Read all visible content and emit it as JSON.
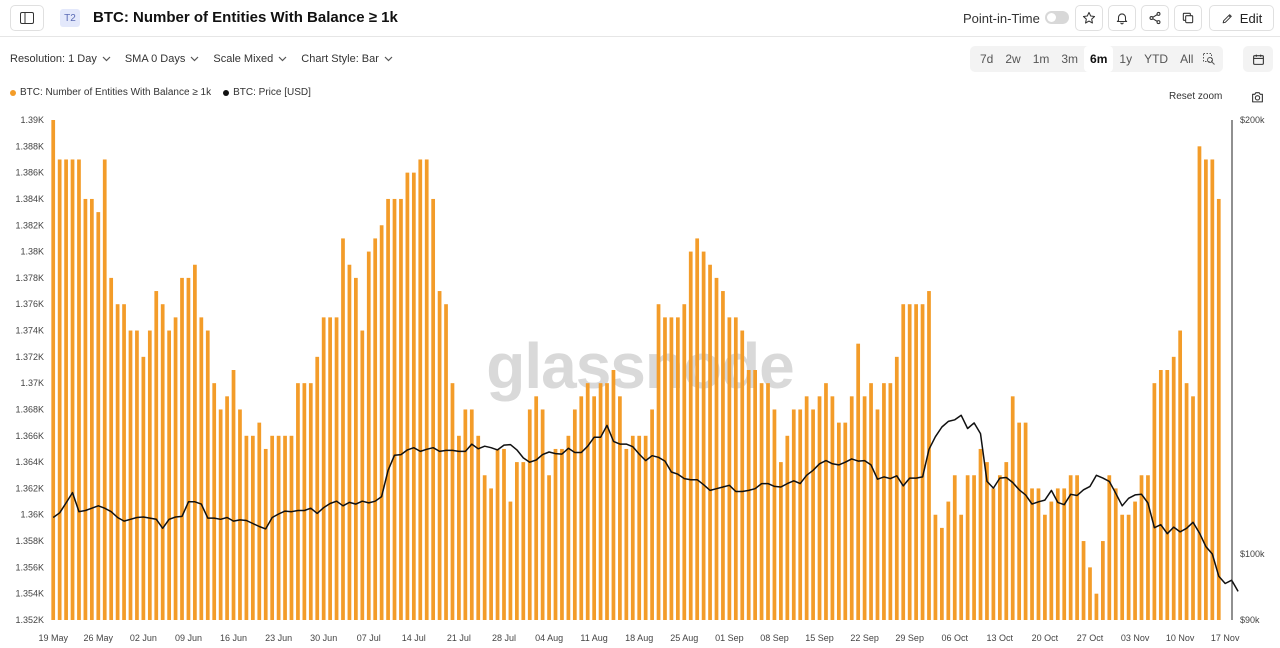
{
  "header": {
    "tier": "T2",
    "title": "BTC: Number of Entities With Balance ≥ 1k",
    "point_in_time_label": "Point-in-Time",
    "edit_label": "Edit"
  },
  "toolbar": {
    "resolution": "Resolution: 1 Day",
    "sma": "SMA 0 Days",
    "scale": "Scale Mixed",
    "chart_style": "Chart Style: Bar"
  },
  "ranges": [
    "7d",
    "2w",
    "1m",
    "3m",
    "6m",
    "1y",
    "YTD",
    "All"
  ],
  "active_range": "6m",
  "reset_zoom_label": "Reset zoom",
  "watermark": "glassnode",
  "colors": {
    "bar": "#f39c29",
    "price": "#111111",
    "axis": "#222222"
  },
  "chart_data": {
    "type": "bar",
    "legend": [
      "BTC: Number of Entities With Balance ≥ 1k",
      "BTC: Price [USD]"
    ],
    "x_tick_labels": [
      "19 May",
      "26 May",
      "02 Jun",
      "09 Jun",
      "16 Jun",
      "23 Jun",
      "30 Jun",
      "07 Jul",
      "14 Jul",
      "21 Jul",
      "28 Jul",
      "04 Aug",
      "11 Aug",
      "18 Aug",
      "25 Aug",
      "01 Sep",
      "08 Sep",
      "15 Sep",
      "22 Sep",
      "29 Sep",
      "06 Oct",
      "13 Oct",
      "20 Oct",
      "27 Oct",
      "03 Nov",
      "10 Nov",
      "17 Nov"
    ],
    "left_axis": {
      "min": 1352,
      "max": 1390,
      "ticks": [
        "1.352K",
        "1.354K",
        "1.356K",
        "1.358K",
        "1.36K",
        "1.362K",
        "1.364K",
        "1.366K",
        "1.368K",
        "1.37K",
        "1.372K",
        "1.374K",
        "1.376K",
        "1.378K",
        "1.38K",
        "1.382K",
        "1.384K",
        "1.386K",
        "1.388K",
        "1.39K"
      ]
    },
    "right_axis": {
      "scale": "log",
      "min": 90000,
      "max": 200000,
      "ticks": [
        {
          "value": 90000,
          "label": "$90k"
        },
        {
          "value": 100000,
          "label": "$100k"
        },
        {
          "value": 200000,
          "label": "$200k"
        }
      ]
    },
    "series": [
      {
        "name": "BTC: Number of Entities With Balance ≥ 1k",
        "type": "bar",
        "values": [
          1390,
          1387,
          1387,
          1387,
          1387,
          1384,
          1384,
          1383,
          1387,
          1378,
          1376,
          1376,
          1374,
          1374,
          1372,
          1374,
          1377,
          1376,
          1374,
          1375,
          1378,
          1378,
          1379,
          1375,
          1374,
          1370,
          1368,
          1369,
          1371,
          1368,
          1366,
          1366,
          1367,
          1365,
          1366,
          1366,
          1366,
          1366,
          1370,
          1370,
          1370,
          1372,
          1375,
          1375,
          1375,
          1381,
          1379,
          1378,
          1374,
          1380,
          1381,
          1382,
          1384,
          1384,
          1384,
          1386,
          1386,
          1387,
          1387,
          1384,
          1377,
          1376,
          1370,
          1366,
          1368,
          1368,
          1366,
          1363,
          1362,
          1365,
          1365,
          1361,
          1364,
          1364,
          1368,
          1369,
          1368,
          1363,
          1365,
          1365,
          1366,
          1368,
          1369,
          1370,
          1369,
          1370,
          1370,
          1371,
          1369,
          1365,
          1366,
          1366,
          1366,
          1368,
          1376,
          1375,
          1375,
          1375,
          1376,
          1380,
          1381,
          1380,
          1379,
          1378,
          1377,
          1375,
          1375,
          1374,
          1371,
          1371,
          1370,
          1370,
          1368,
          1364,
          1366,
          1368,
          1368,
          1369,
          1368,
          1369,
          1370,
          1369,
          1367,
          1367,
          1369,
          1373,
          1369,
          1370,
          1368,
          1370,
          1370,
          1372,
          1376,
          1376,
          1376,
          1376,
          1377,
          1360,
          1359,
          1361,
          1363,
          1360,
          1363,
          1363,
          1365,
          1364,
          1362,
          1363,
          1364,
          1369,
          1367,
          1367,
          1362,
          1362,
          1360,
          1361,
          1362,
          1362,
          1363,
          1363,
          1358,
          1356,
          1354,
          1358,
          1363,
          1362,
          1360,
          1360,
          1361,
          1363,
          1363,
          1370,
          1371,
          1371,
          1372,
          1374,
          1370,
          1369,
          1388,
          1387,
          1387,
          1384
        ]
      },
      {
        "name": "BTC: Price [USD]",
        "type": "line",
        "axis": "right",
        "values": [
          106000,
          106800,
          108500,
          110300,
          107000,
          107200,
          107600,
          108000,
          107600,
          107000,
          106000,
          105400,
          105700,
          106000,
          106100,
          105900,
          105700,
          104200,
          105700,
          106100,
          106200,
          108700,
          108700,
          108300,
          105900,
          105900,
          105700,
          106000,
          105400,
          105600,
          105500,
          105000,
          104500,
          104100,
          106000,
          106600,
          107100,
          107000,
          107200,
          107200,
          107600,
          106700,
          107700,
          108400,
          108800,
          108000,
          108600,
          108300,
          108800,
          108500,
          108800,
          109600,
          114300,
          117100,
          117200,
          118100,
          118500,
          117800,
          118200,
          118500,
          117800,
          118000,
          118000,
          117800,
          117800,
          119200,
          118300,
          118800,
          118500,
          118100,
          119000,
          119100,
          118100,
          116600,
          115800,
          116200,
          117200,
          117700,
          117400,
          117300,
          118400,
          117600,
          117600,
          118800,
          120500,
          120500,
          122800,
          119700,
          119200,
          119200,
          118700,
          117300,
          116100,
          117000,
          116700,
          116000,
          114000,
          113600,
          112800,
          112600,
          112600,
          111700,
          110700,
          111000,
          111300,
          111600,
          110500,
          110500,
          110700,
          111000,
          111900,
          111900,
          111400,
          111300,
          111900,
          112400,
          111900,
          113400,
          114300,
          115500,
          116100,
          115500,
          115300,
          115800,
          116400,
          116000,
          116100,
          115300,
          112700,
          113100,
          112800,
          113300,
          111500,
          112900,
          112900,
          113100,
          118200,
          120600,
          122500,
          123600,
          123900,
          124800,
          122200,
          123300,
          121200,
          112300,
          111100,
          112900,
          113000,
          112100,
          110800,
          109900,
          108300,
          108700,
          109000,
          110700,
          108600,
          108200,
          110000,
          109800,
          110800,
          111400,
          113400,
          112900,
          112300,
          110200,
          108000,
          109300,
          109900,
          110000,
          108500,
          104300,
          104800,
          103300,
          104400,
          103600,
          104200,
          105200,
          103400,
          101200,
          100000,
          96500,
          95400,
          95900,
          94200
        ]
      }
    ]
  }
}
